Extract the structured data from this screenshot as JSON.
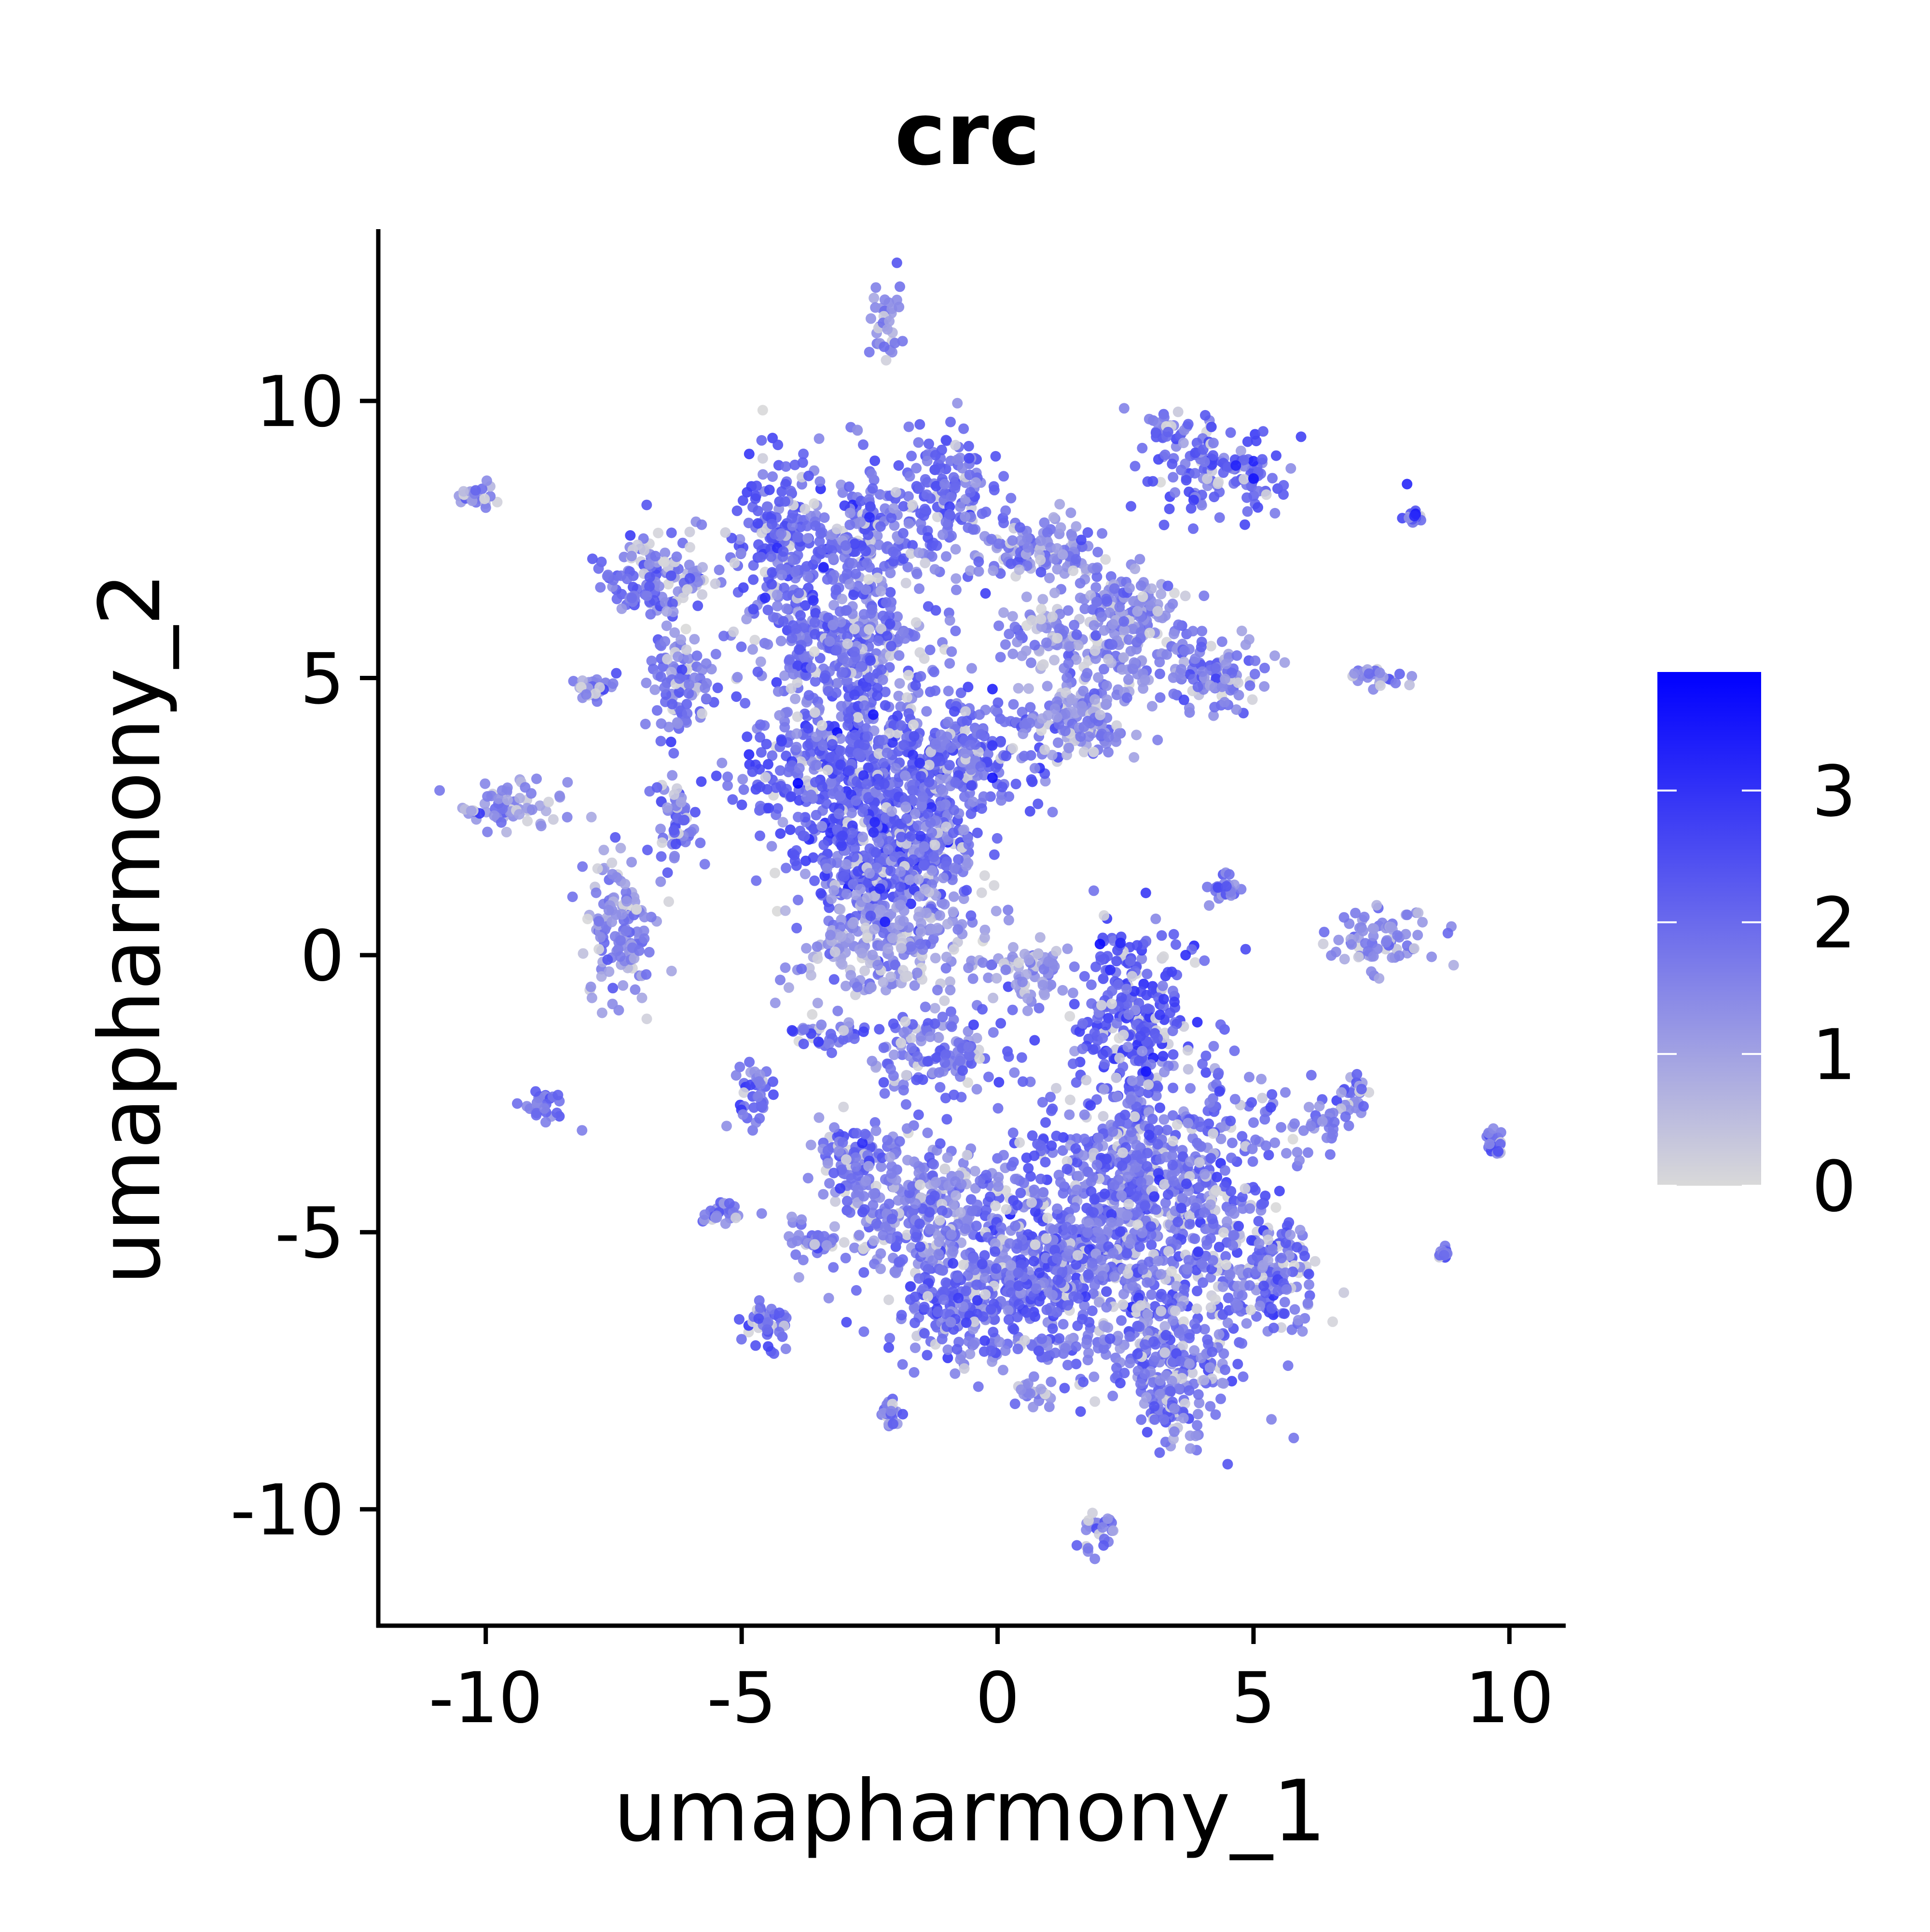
{
  "chart_data": {
    "type": "scatter",
    "title": "crc",
    "xlabel": "umapharmony_1",
    "ylabel": "umapharmony_2",
    "xlim": [
      -12.1,
      11.1
    ],
    "ylim": [
      -12.1,
      13.1
    ],
    "x_ticks": [
      -10,
      -5,
      0,
      5,
      10
    ],
    "x_tick_labels": [
      "-10",
      "-5",
      "0",
      "5",
      "10"
    ],
    "y_ticks": [
      -10,
      -5,
      0,
      5,
      10
    ],
    "y_tick_labels": [
      "-10",
      "-5",
      "0",
      "5",
      "10"
    ],
    "grid": false,
    "legend": {
      "type": "colorbar",
      "placement": "right",
      "low_color": "#d9d9d9",
      "high_color": "#0000ff",
      "range": [
        0,
        3.9
      ],
      "ticks": [
        0,
        1,
        2,
        3
      ],
      "tick_labels": [
        "0",
        "1",
        "2",
        "3"
      ]
    },
    "clusters": [
      {
        "cx": -2.2,
        "cy": 11.4,
        "sx": 0.15,
        "sy": 0.45,
        "mean": 1.3
      },
      {
        "cx": -10.2,
        "cy": 8.3,
        "sx": 0.18,
        "sy": 0.15,
        "mean": 1.4
      },
      {
        "cx": -6.7,
        "cy": 6.8,
        "sx": 0.55,
        "sy": 0.45,
        "mean": 1.8
      },
      {
        "cx": -4.2,
        "cy": 7.5,
        "sx": 0.45,
        "sy": 0.8,
        "mean": 2.1
      },
      {
        "cx": -2.6,
        "cy": 7.6,
        "sx": 0.6,
        "sy": 0.6,
        "mean": 1.9
      },
      {
        "cx": -1.0,
        "cy": 8.4,
        "sx": 0.45,
        "sy": 0.55,
        "mean": 2.0
      },
      {
        "cx": -3.0,
        "cy": 5.6,
        "sx": 0.9,
        "sy": 0.6,
        "mean": 1.8
      },
      {
        "cx": -6.2,
        "cy": 4.9,
        "sx": 0.35,
        "sy": 0.5,
        "mean": 1.8
      },
      {
        "cx": -7.8,
        "cy": 4.8,
        "sx": 0.2,
        "sy": 0.12,
        "mean": 1.5
      },
      {
        "cx": -3.0,
        "cy": 3.4,
        "sx": 1.0,
        "sy": 0.9,
        "mean": 2.1
      },
      {
        "cx": -0.8,
        "cy": 3.6,
        "sx": 0.9,
        "sy": 0.5,
        "mean": 1.9
      },
      {
        "cx": 1.5,
        "cy": 4.2,
        "sx": 0.6,
        "sy": 0.4,
        "mean": 1.5
      },
      {
        "cx": 0.8,
        "cy": 7.3,
        "sx": 0.8,
        "sy": 0.3,
        "mean": 1.5
      },
      {
        "cx": 1.0,
        "cy": 5.8,
        "sx": 0.6,
        "sy": 0.3,
        "mean": 1.4
      },
      {
        "cx": -2.5,
        "cy": 1.7,
        "sx": 0.6,
        "sy": 0.7,
        "mean": 2.2
      },
      {
        "cx": -1.3,
        "cy": 1.8,
        "sx": 0.5,
        "sy": 0.6,
        "mean": 1.9
      },
      {
        "cx": -9.6,
        "cy": 2.7,
        "sx": 0.55,
        "sy": 0.22,
        "mean": 1.4
      },
      {
        "cx": -6.3,
        "cy": 2.6,
        "sx": 0.2,
        "sy": 0.5,
        "mean": 1.7
      },
      {
        "cx": -7.4,
        "cy": 0.5,
        "sx": 0.35,
        "sy": 0.7,
        "mean": 1.5
      },
      {
        "cx": -2.2,
        "cy": 0.2,
        "sx": 0.9,
        "sy": 0.5,
        "mean": 1.2
      },
      {
        "cx": 2.7,
        "cy": 6.3,
        "sx": 0.5,
        "sy": 0.3,
        "mean": 1.7
      },
      {
        "cx": 2.5,
        "cy": 5.8,
        "sx": 0.4,
        "sy": 0.5,
        "mean": 1.5
      },
      {
        "cx": 4.1,
        "cy": 5.0,
        "sx": 0.6,
        "sy": 0.35,
        "mean": 1.6
      },
      {
        "cx": 3.4,
        "cy": 9.5,
        "sx": 0.3,
        "sy": 0.2,
        "mean": 1.7
      },
      {
        "cx": 4.4,
        "cy": 8.7,
        "sx": 0.7,
        "sy": 0.35,
        "mean": 2.1
      },
      {
        "cx": 8.1,
        "cy": 7.9,
        "sx": 0.08,
        "sy": 0.05,
        "mean": 2.0
      },
      {
        "cx": 7.5,
        "cy": 5.0,
        "sx": 0.35,
        "sy": 0.1,
        "mean": 1.3
      },
      {
        "cx": 4.4,
        "cy": 1.2,
        "sx": 0.18,
        "sy": 0.12,
        "mean": 1.8
      },
      {
        "cx": 7.5,
        "cy": 0.3,
        "sx": 0.55,
        "sy": 0.25,
        "mean": 1.4
      },
      {
        "cx": 2.7,
        "cy": -0.9,
        "sx": 0.55,
        "sy": 0.75,
        "mean": 2.4
      },
      {
        "cx": 0.6,
        "cy": -0.3,
        "sx": 0.4,
        "sy": 0.3,
        "mean": 1.2
      },
      {
        "cx": -3.3,
        "cy": -1.4,
        "sx": 0.5,
        "sy": 0.15,
        "mean": 1.8
      },
      {
        "cx": -1.2,
        "cy": -1.8,
        "sx": 0.6,
        "sy": 0.4,
        "mean": 1.8
      },
      {
        "cx": -4.8,
        "cy": -2.4,
        "sx": 0.25,
        "sy": 0.3,
        "mean": 1.9
      },
      {
        "cx": -8.8,
        "cy": -2.7,
        "sx": 0.2,
        "sy": 0.15,
        "mean": 1.8
      },
      {
        "cx": 3.0,
        "cy": -4.3,
        "sx": 1.3,
        "sy": 1.3,
        "mean": 1.9
      },
      {
        "cx": 0.9,
        "cy": -5.7,
        "sx": 0.9,
        "sy": 0.8,
        "mean": 1.9
      },
      {
        "cx": 5.4,
        "cy": -5.8,
        "sx": 0.5,
        "sy": 0.5,
        "mean": 1.9
      },
      {
        "cx": 3.2,
        "cy": -7.3,
        "sx": 0.7,
        "sy": 0.6,
        "mean": 1.8
      },
      {
        "cx": -1.6,
        "cy": -4.6,
        "sx": 1.0,
        "sy": 0.6,
        "mean": 1.7
      },
      {
        "cx": -0.8,
        "cy": -6.3,
        "sx": 0.6,
        "sy": 0.6,
        "mean": 2.0
      },
      {
        "cx": -2.8,
        "cy": -3.6,
        "sx": 0.4,
        "sy": 0.3,
        "mean": 1.9
      },
      {
        "cx": -5.4,
        "cy": -4.7,
        "sx": 0.2,
        "sy": 0.1,
        "mean": 1.7
      },
      {
        "cx": -3.6,
        "cy": -5.2,
        "sx": 0.2,
        "sy": 0.1,
        "mean": 1.8
      },
      {
        "cx": -4.5,
        "cy": -6.6,
        "sx": 0.25,
        "sy": 0.3,
        "mean": 2.0
      },
      {
        "cx": -2.1,
        "cy": -8.3,
        "sx": 0.1,
        "sy": 0.12,
        "mean": 1.9
      },
      {
        "cx": 0.7,
        "cy": -7.9,
        "sx": 0.2,
        "sy": 0.12,
        "mean": 1.5
      },
      {
        "cx": 3.4,
        "cy": -8.3,
        "sx": 0.25,
        "sy": 0.25,
        "mean": 1.7
      },
      {
        "cx": 6.9,
        "cy": -2.6,
        "sx": 0.2,
        "sy": 0.2,
        "mean": 1.8
      },
      {
        "cx": 6.2,
        "cy": -3.0,
        "sx": 0.3,
        "sy": 0.15,
        "mean": 1.7
      },
      {
        "cx": 9.7,
        "cy": -3.4,
        "sx": 0.12,
        "sy": 0.12,
        "mean": 1.9
      },
      {
        "cx": 8.7,
        "cy": -5.4,
        "sx": 0.05,
        "sy": 0.05,
        "mean": 2.2
      },
      {
        "cx": 2.0,
        "cy": -10.4,
        "sx": 0.15,
        "sy": 0.2,
        "mean": 1.5
      }
    ],
    "highlight_points": [
      {
        "x": -3.9,
        "y": 3.1,
        "value": 3.9
      },
      {
        "x": -0.1,
        "y": 3.2,
        "value": 3.6
      },
      {
        "x": 8.0,
        "y": 8.5,
        "value": 3.2
      },
      {
        "x": 5.0,
        "y": 8.6,
        "value": 3.5
      },
      {
        "x": -2.2,
        "y": 0.6,
        "value": 3.4
      },
      {
        "x": -3.4,
        "y": 7.0,
        "value": 3.3
      },
      {
        "x": -2.4,
        "y": 2.4,
        "value": 3.2
      },
      {
        "x": 2.0,
        "y": 0.2,
        "value": 3.7
      },
      {
        "x": 2.9,
        "y": -2.1,
        "value": 3.5
      },
      {
        "x": -0.1,
        "y": 4.8,
        "value": 3.3
      },
      {
        "x": -3.6,
        "y": 6.4,
        "value": 3.0
      },
      {
        "x": -2.3,
        "y": 1.2,
        "value": 3.1
      }
    ]
  }
}
